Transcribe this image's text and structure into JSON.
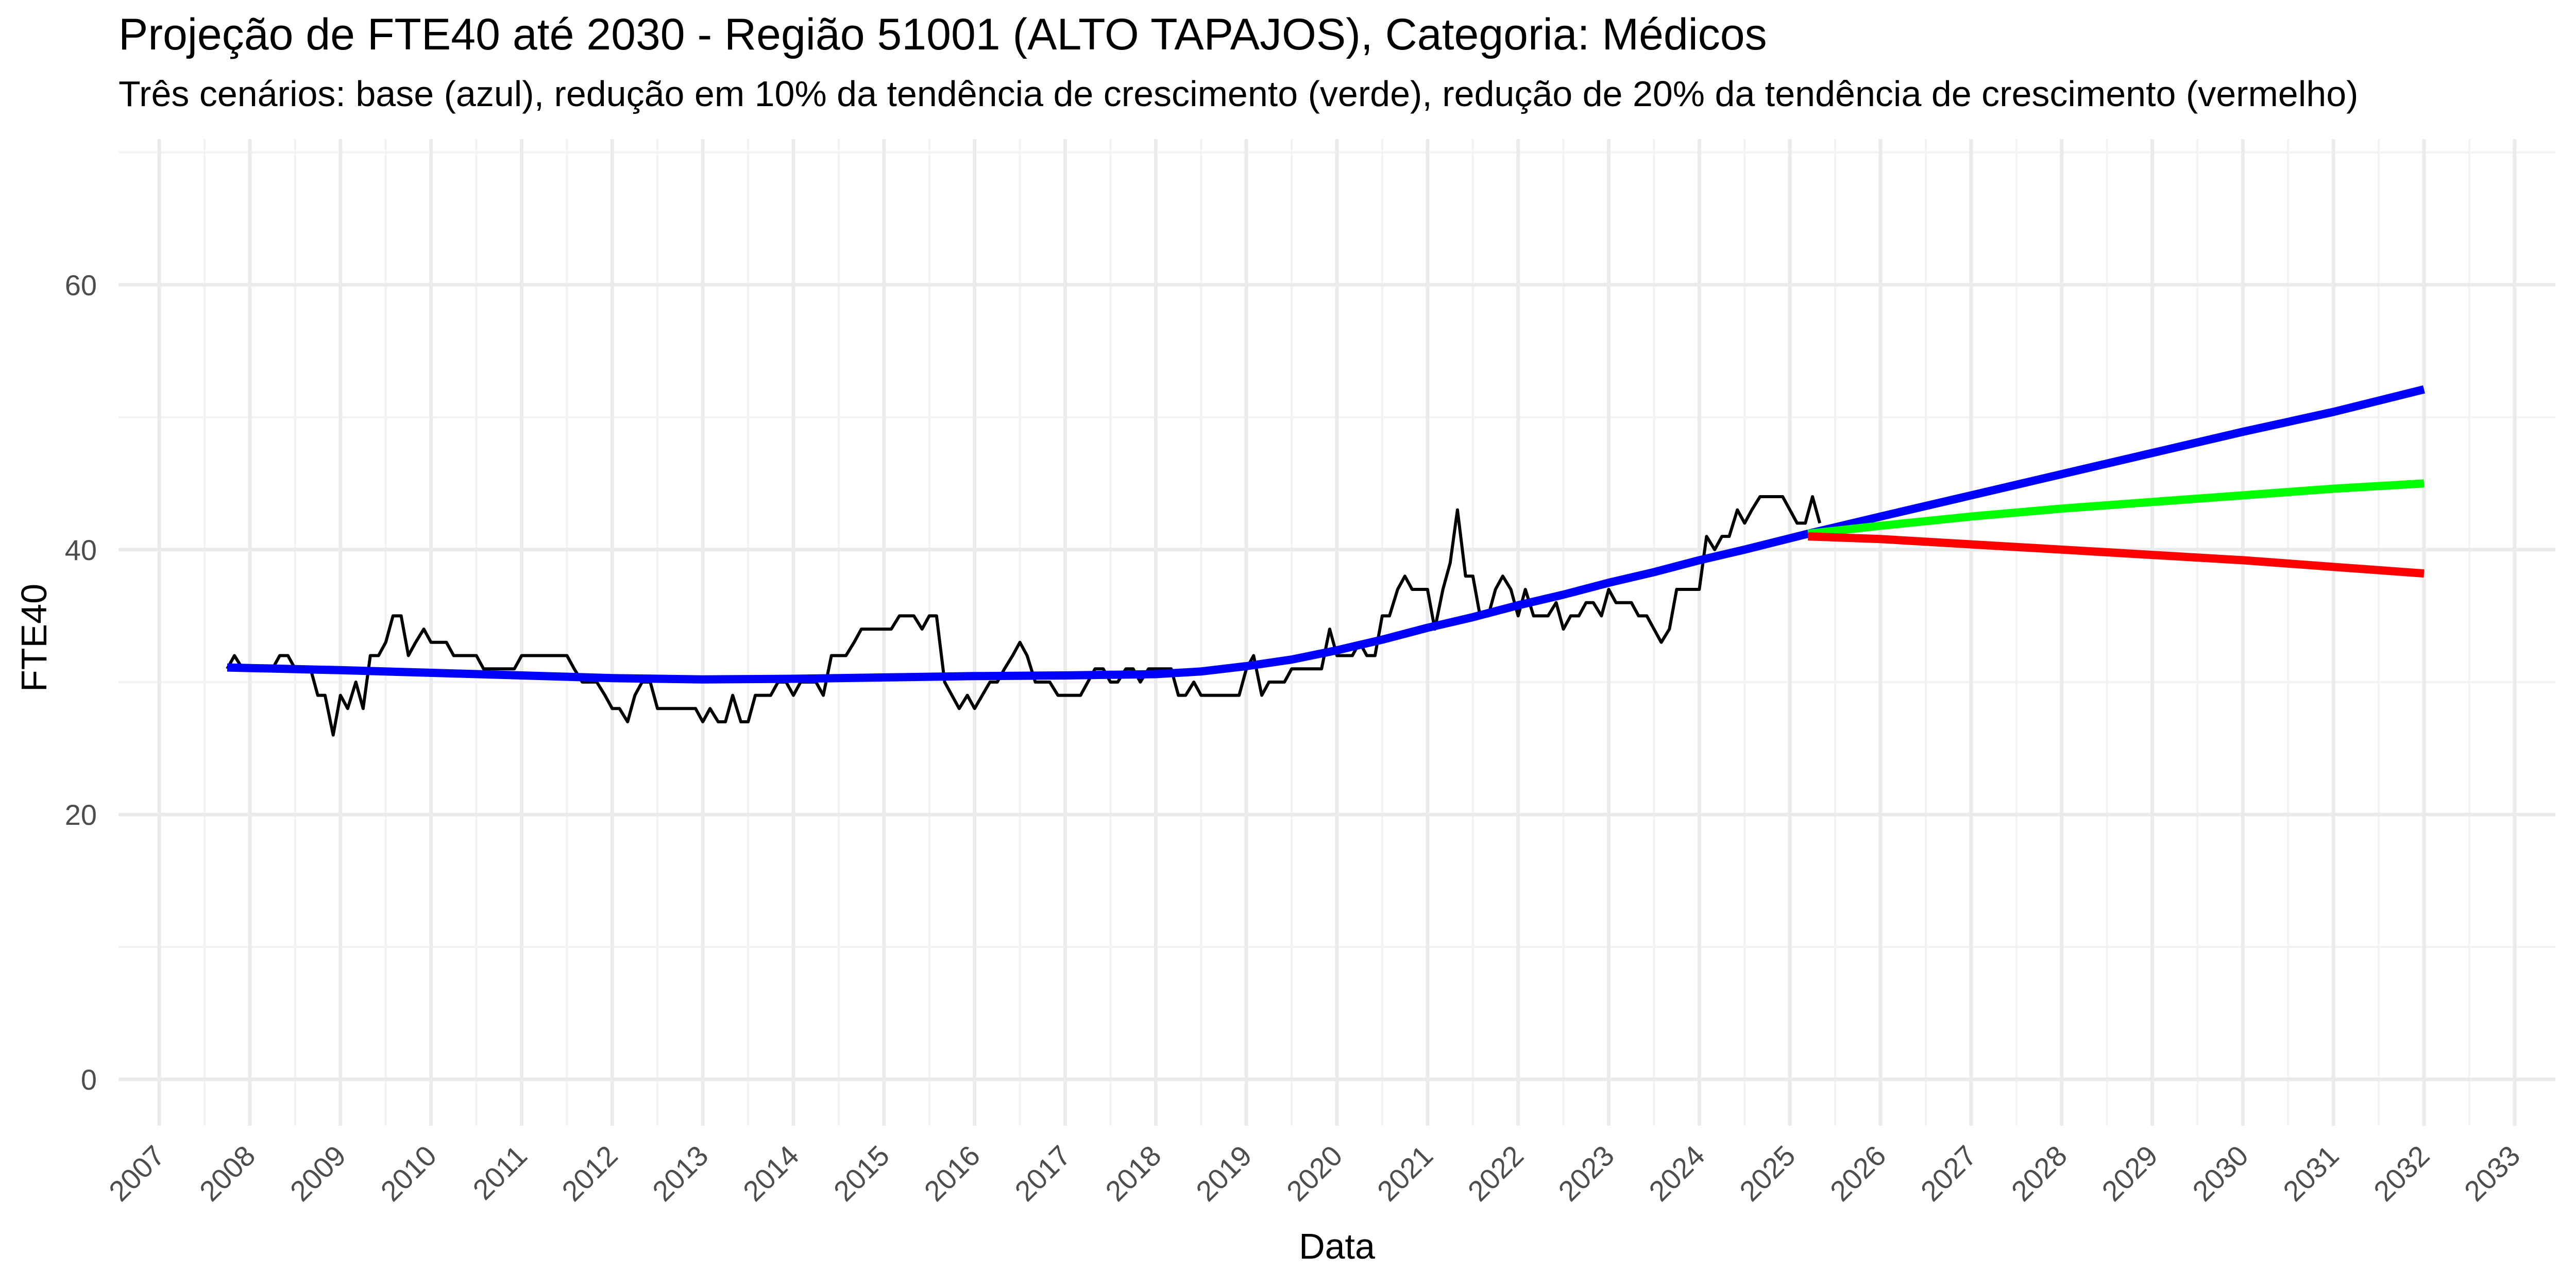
{
  "chart_data": {
    "type": "line",
    "title": "Projeção de FTE40 até 2030 - Região 51001 (ALTO TAPAJOS), Categoria: Médicos",
    "subtitle": "Três cenários: base (azul), redução em 10% da tendência de crescimento (verde), redução de 20% da tendência de crescimento (vermelho)",
    "xlabel": "Data",
    "ylabel": "FTE40",
    "xlim": [
      2006.55,
      2033.45
    ],
    "ylim": [
      -3.5,
      71
    ],
    "x_ticks": [
      "2007",
      "2008",
      "2009",
      "2010",
      "2011",
      "2012",
      "2013",
      "2014",
      "2015",
      "2016",
      "2017",
      "2018",
      "2019",
      "2020",
      "2021",
      "2022",
      "2023",
      "2024",
      "2025",
      "2026",
      "2027",
      "2028",
      "2029",
      "2030",
      "2031",
      "2032",
      "2033"
    ],
    "y_ticks": [
      0,
      20,
      40,
      60
    ],
    "grid": true,
    "legend": "none",
    "series": [
      {
        "color": "#000000",
        "points": [
          [
            2007.75,
            31
          ],
          [
            2007.83,
            32
          ],
          [
            2007.92,
            31
          ],
          [
            2008.0,
            31
          ],
          [
            2008.25,
            31
          ],
          [
            2008.33,
            32
          ],
          [
            2008.42,
            32
          ],
          [
            2008.5,
            31
          ],
          [
            2008.67,
            31
          ],
          [
            2008.75,
            29
          ],
          [
            2008.83,
            29
          ],
          [
            2008.92,
            26
          ],
          [
            2009.0,
            29
          ],
          [
            2009.08,
            28
          ],
          [
            2009.17,
            30
          ],
          [
            2009.25,
            28
          ],
          [
            2009.33,
            32
          ],
          [
            2009.42,
            32
          ],
          [
            2009.5,
            33
          ],
          [
            2009.58,
            35
          ],
          [
            2009.67,
            35
          ],
          [
            2009.75,
            32
          ],
          [
            2009.83,
            33
          ],
          [
            2009.92,
            34
          ],
          [
            2010.0,
            33
          ],
          [
            2010.17,
            33
          ],
          [
            2010.25,
            32
          ],
          [
            2010.5,
            32
          ],
          [
            2010.58,
            31
          ],
          [
            2010.92,
            31
          ],
          [
            2011.0,
            32
          ],
          [
            2011.5,
            32
          ],
          [
            2011.58,
            31
          ],
          [
            2011.67,
            30
          ],
          [
            2011.83,
            30
          ],
          [
            2011.92,
            29
          ],
          [
            2012.0,
            28
          ],
          [
            2012.08,
            28
          ],
          [
            2012.17,
            27
          ],
          [
            2012.25,
            29
          ],
          [
            2012.33,
            30
          ],
          [
            2012.42,
            30
          ],
          [
            2012.5,
            28
          ],
          [
            2012.92,
            28
          ],
          [
            2013.0,
            27
          ],
          [
            2013.08,
            28
          ],
          [
            2013.17,
            27
          ],
          [
            2013.25,
            27
          ],
          [
            2013.33,
            29
          ],
          [
            2013.42,
            27
          ],
          [
            2013.5,
            27
          ],
          [
            2013.58,
            29
          ],
          [
            2013.75,
            29
          ],
          [
            2013.83,
            30
          ],
          [
            2013.92,
            30
          ],
          [
            2014.0,
            29
          ],
          [
            2014.08,
            30
          ],
          [
            2014.25,
            30
          ],
          [
            2014.33,
            29
          ],
          [
            2014.42,
            32
          ],
          [
            2014.58,
            32
          ],
          [
            2014.67,
            33
          ],
          [
            2014.75,
            34
          ],
          [
            2015.08,
            34
          ],
          [
            2015.17,
            35
          ],
          [
            2015.33,
            35
          ],
          [
            2015.42,
            34
          ],
          [
            2015.5,
            35
          ],
          [
            2015.58,
            35
          ],
          [
            2015.67,
            30
          ],
          [
            2015.83,
            28
          ],
          [
            2015.92,
            29
          ],
          [
            2016.0,
            28
          ],
          [
            2016.17,
            30
          ],
          [
            2016.25,
            30
          ],
          [
            2016.33,
            31
          ],
          [
            2016.42,
            32
          ],
          [
            2016.5,
            33
          ],
          [
            2016.58,
            32
          ],
          [
            2016.67,
            30
          ],
          [
            2016.83,
            30
          ],
          [
            2016.92,
            29
          ],
          [
            2017.17,
            29
          ],
          [
            2017.25,
            30
          ],
          [
            2017.33,
            31
          ],
          [
            2017.42,
            31
          ],
          [
            2017.5,
            30
          ],
          [
            2017.58,
            30
          ],
          [
            2017.67,
            31
          ],
          [
            2017.75,
            31
          ],
          [
            2017.83,
            30
          ],
          [
            2017.92,
            31
          ],
          [
            2018.0,
            31
          ],
          [
            2018.08,
            31
          ],
          [
            2018.17,
            31
          ],
          [
            2018.25,
            29
          ],
          [
            2018.33,
            29
          ],
          [
            2018.42,
            30
          ],
          [
            2018.5,
            29
          ],
          [
            2018.58,
            29
          ],
          [
            2018.92,
            29
          ],
          [
            2019.0,
            31
          ],
          [
            2019.08,
            32
          ],
          [
            2019.17,
            29
          ],
          [
            2019.25,
            30
          ],
          [
            2019.42,
            30
          ],
          [
            2019.5,
            31
          ],
          [
            2019.83,
            31
          ],
          [
            2019.92,
            34
          ],
          [
            2020.0,
            32
          ],
          [
            2020.17,
            32
          ],
          [
            2020.25,
            33
          ],
          [
            2020.33,
            32
          ],
          [
            2020.42,
            32
          ],
          [
            2020.5,
            35
          ],
          [
            2020.58,
            35
          ],
          [
            2020.67,
            37
          ],
          [
            2020.75,
            38
          ],
          [
            2020.83,
            37
          ],
          [
            2021.0,
            37
          ],
          [
            2021.08,
            34
          ],
          [
            2021.17,
            37
          ],
          [
            2021.25,
            39
          ],
          [
            2021.33,
            43
          ],
          [
            2021.42,
            38
          ],
          [
            2021.5,
            38
          ],
          [
            2021.58,
            35
          ],
          [
            2021.67,
            35
          ],
          [
            2021.75,
            37
          ],
          [
            2021.83,
            38
          ],
          [
            2021.92,
            37
          ],
          [
            2022.0,
            35
          ],
          [
            2022.08,
            37
          ],
          [
            2022.17,
            35
          ],
          [
            2022.33,
            35
          ],
          [
            2022.42,
            36
          ],
          [
            2022.5,
            34
          ],
          [
            2022.58,
            35
          ],
          [
            2022.67,
            35
          ],
          [
            2022.75,
            36
          ],
          [
            2022.83,
            36
          ],
          [
            2022.92,
            35
          ],
          [
            2023.0,
            37
          ],
          [
            2023.08,
            36
          ],
          [
            2023.25,
            36
          ],
          [
            2023.33,
            35
          ],
          [
            2023.42,
            35
          ],
          [
            2023.5,
            34
          ],
          [
            2023.58,
            33
          ],
          [
            2023.67,
            34
          ],
          [
            2023.75,
            37
          ],
          [
            2024.0,
            37
          ],
          [
            2024.08,
            41
          ],
          [
            2024.17,
            40
          ],
          [
            2024.25,
            41
          ],
          [
            2024.33,
            41
          ],
          [
            2024.42,
            43
          ],
          [
            2024.5,
            42
          ],
          [
            2024.58,
            43
          ],
          [
            2024.67,
            44
          ],
          [
            2024.92,
            44
          ],
          [
            2025.0,
            43
          ],
          [
            2025.08,
            42
          ],
          [
            2025.17,
            42
          ],
          [
            2025.25,
            44
          ],
          [
            2025.33,
            42
          ]
        ]
      },
      {
        "color": "#0000FF",
        "points": [
          [
            2007.75,
            31.1
          ],
          [
            2009,
            30.9
          ],
          [
            2010,
            30.7
          ],
          [
            2011,
            30.5
          ],
          [
            2012,
            30.3
          ],
          [
            2013,
            30.2
          ],
          [
            2014,
            30.25
          ],
          [
            2015,
            30.35
          ],
          [
            2016,
            30.45
          ],
          [
            2017,
            30.5
          ],
          [
            2018,
            30.6
          ],
          [
            2018.5,
            30.8
          ],
          [
            2019,
            31.2
          ],
          [
            2019.5,
            31.7
          ],
          [
            2020,
            32.4
          ],
          [
            2020.5,
            33.2
          ],
          [
            2021,
            34.1
          ],
          [
            2021.5,
            34.9
          ],
          [
            2022,
            35.8
          ],
          [
            2022.5,
            36.6
          ],
          [
            2023,
            37.5
          ],
          [
            2023.5,
            38.3
          ],
          [
            2024,
            39.2
          ],
          [
            2024.5,
            40.0
          ],
          [
            2025.2,
            41.2
          ],
          [
            2026,
            42.5
          ],
          [
            2027,
            44.1
          ],
          [
            2028,
            45.7
          ],
          [
            2029,
            47.3
          ],
          [
            2030,
            48.9
          ],
          [
            2031,
            50.4
          ],
          [
            2032,
            52.1
          ]
        ]
      },
      {
        "color": "#00FF00",
        "points": [
          [
            2025.2,
            41.2
          ],
          [
            2026,
            41.8
          ],
          [
            2027,
            42.5
          ],
          [
            2028,
            43.1
          ],
          [
            2029,
            43.6
          ],
          [
            2030,
            44.1
          ],
          [
            2031,
            44.6
          ],
          [
            2032,
            45.0
          ]
        ]
      },
      {
        "color": "#FF0000",
        "points": [
          [
            2025.2,
            41.0
          ],
          [
            2026,
            40.8
          ],
          [
            2027,
            40.4
          ],
          [
            2028,
            40.0
          ],
          [
            2029,
            39.6
          ],
          [
            2030,
            39.2
          ],
          [
            2031,
            38.7
          ],
          [
            2032,
            38.2
          ]
        ]
      }
    ]
  }
}
